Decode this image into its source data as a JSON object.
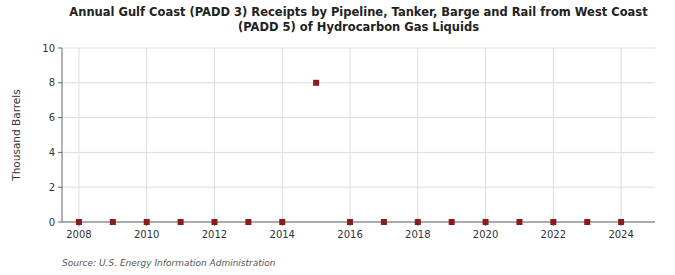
{
  "chart_data": {
    "type": "scatter",
    "title": "Annual Gulf Coast (PADD 3) Receipts by Pipeline, Tanker, Barge and Rail from West Coast\n(PADD 5) of Hydrocarbon Gas Liquids",
    "y_label": "Thousand Barrels",
    "source": "Source: U.S. Energy Information Administration",
    "x": [
      2008,
      2009,
      2010,
      2011,
      2012,
      2013,
      2014,
      2015,
      2016,
      2017,
      2018,
      2019,
      2020,
      2021,
      2022,
      2023,
      2024
    ],
    "values": [
      0,
      0,
      0,
      0,
      0,
      0,
      0,
      8,
      0,
      0,
      0,
      0,
      0,
      0,
      0,
      0,
      0
    ],
    "color": "#8B1A1A",
    "marker": "square",
    "xlim": [
      2007.5,
      2025.0
    ],
    "ylim": [
      0,
      10
    ],
    "xticks": [
      2008,
      2010,
      2012,
      2014,
      2016,
      2018,
      2020,
      2022,
      2024
    ],
    "yticks": [
      0,
      2,
      4,
      6,
      8,
      10
    ],
    "grid": true
  }
}
